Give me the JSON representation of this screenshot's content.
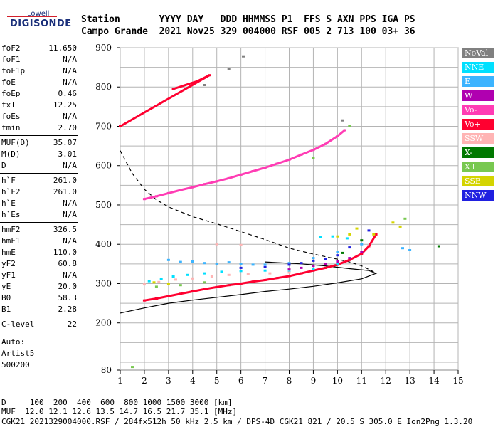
{
  "logo": {
    "line1": "Lowell",
    "line2": "DIGISONDE"
  },
  "header": {
    "line1": "Station       YYYY DAY   DDD HHMMSS P1  FFS S AXN PPS IGA PS",
    "line2": "Campo Grande  2021 Nov25 329 004000 RSF 005 2 713 100 03+ 36"
  },
  "params": {
    "group1": [
      {
        "label": "foF2",
        "value": "11.650"
      },
      {
        "label": "foF1",
        "value": "N/A"
      },
      {
        "label": "foF1p",
        "value": "N/A"
      },
      {
        "label": "foE",
        "value": "N/A"
      },
      {
        "label": "foEp",
        "value": "0.46"
      },
      {
        "label": "fxI",
        "value": "12.25"
      },
      {
        "label": "foEs",
        "value": "N/A"
      },
      {
        "label": "fmin",
        "value": "2.70"
      }
    ],
    "group2": [
      {
        "label": "MUF(D)",
        "value": "35.07"
      },
      {
        "label": "M(D)",
        "value": "3.01"
      },
      {
        "label": "D",
        "value": "N/A"
      }
    ],
    "group3": [
      {
        "label": "h`F",
        "value": "261.0"
      },
      {
        "label": "h`F2",
        "value": "261.0"
      },
      {
        "label": "h`E",
        "value": "N/A"
      },
      {
        "label": "h`Es",
        "value": "N/A"
      }
    ],
    "group4": [
      {
        "label": "hmF2",
        "value": "326.5"
      },
      {
        "label": "hmF1",
        "value": "N/A"
      },
      {
        "label": "hmE",
        "value": "110.0"
      },
      {
        "label": "yF2",
        "value": "60.8"
      },
      {
        "label": "yF1",
        "value": "N/A"
      },
      {
        "label": "yE",
        "value": "20.0"
      },
      {
        "label": "B0",
        "value": "58.3"
      },
      {
        "label": "B1",
        "value": "2.28"
      }
    ],
    "clevel": {
      "label": "C-level",
      "value": "22"
    },
    "auto": [
      "Auto:",
      "Artist5",
      "500200"
    ]
  },
  "legend": [
    {
      "label": "NoVal",
      "color": "#808080"
    },
    {
      "label": "NNE",
      "color": "#00e0ff"
    },
    {
      "label": "E",
      "color": "#3cb4ff"
    },
    {
      "label": "W",
      "color": "#b000b0"
    },
    {
      "label": "Vo-",
      "color": "#ff3cb4"
    },
    {
      "label": "Vo+",
      "color": "#ff0030"
    },
    {
      "label": "SSW",
      "color": "#ffb4b4"
    },
    {
      "label": "X-",
      "color": "#007800"
    },
    {
      "label": "X+",
      "color": "#78c850"
    },
    {
      "label": "SSE",
      "color": "#d4d400"
    },
    {
      "label": "NNW",
      "color": "#2020e0"
    }
  ],
  "footer": {
    "line1": "D     100  200  400  600  800 1000 1500 3000 [km]",
    "line2": "MUF  12.0 12.1 12.6 13.5 14.7 16.5 21.7 35.1 [MHz]",
    "line3": "CGK21_2021329004000.RSF / 284fx512h 50 kHz 2.5 km / DPS-4D CGK21 821 / 20.5 S 305.0 E Ion2Png 1.3.20"
  },
  "chart_data": {
    "type": "scatter",
    "title": "",
    "xlabel": "",
    "ylabel": "",
    "xlim": [
      1,
      15
    ],
    "ylim": [
      80,
      900
    ],
    "x_ticks": [
      1,
      2,
      3,
      4,
      5,
      6,
      7,
      8,
      9,
      10,
      11,
      12,
      13,
      14,
      15
    ],
    "y_ticks": [
      80,
      200,
      300,
      400,
      500,
      600,
      700,
      800,
      900
    ],
    "grid": true,
    "legend_position": "right",
    "series": [
      {
        "name": "Vo+",
        "color": "#ff0030",
        "points": [
          [
            2.0,
            257
          ],
          [
            2.5,
            262
          ],
          [
            3.0,
            268
          ],
          [
            3.5,
            274
          ],
          [
            4.0,
            280
          ],
          [
            4.5,
            286
          ],
          [
            5.0,
            291
          ],
          [
            5.5,
            296
          ],
          [
            6.0,
            300
          ],
          [
            6.5,
            305
          ],
          [
            7.0,
            309
          ],
          [
            7.5,
            314
          ],
          [
            8.0,
            319
          ],
          [
            8.5,
            326
          ],
          [
            9.0,
            333
          ],
          [
            9.5,
            340
          ],
          [
            10.0,
            348
          ],
          [
            10.5,
            360
          ],
          [
            11.0,
            376
          ],
          [
            11.3,
            395
          ],
          [
            11.6,
            425
          ]
        ]
      },
      {
        "name": "Vo-",
        "color": "#ff3cb4",
        "points": [
          [
            2.0,
            515
          ],
          [
            2.5,
            522
          ],
          [
            3.0,
            530
          ],
          [
            3.5,
            538
          ],
          [
            4.0,
            545
          ],
          [
            4.5,
            553
          ],
          [
            5.0,
            560
          ],
          [
            5.5,
            568
          ],
          [
            6.0,
            577
          ],
          [
            6.5,
            586
          ],
          [
            7.0,
            595
          ],
          [
            7.5,
            605
          ],
          [
            8.0,
            615
          ],
          [
            8.5,
            628
          ],
          [
            9.0,
            640
          ],
          [
            9.5,
            655
          ],
          [
            10.0,
            675
          ],
          [
            10.3,
            690
          ]
        ]
      },
      {
        "name": "E",
        "color": "#3cb4ff",
        "points": [
          [
            3.0,
            360
          ],
          [
            3.5,
            355
          ],
          [
            4.0,
            356
          ],
          [
            4.5,
            352
          ],
          [
            5.0,
            350
          ],
          [
            5.5,
            354
          ],
          [
            6.0,
            350
          ],
          [
            6.5,
            348
          ],
          [
            7.0,
            348
          ],
          [
            8.0,
            352
          ],
          [
            9.0,
            365
          ],
          [
            10.0,
            380
          ],
          [
            11.0,
            400
          ],
          [
            12.7,
            390
          ],
          [
            13.0,
            385
          ]
        ]
      },
      {
        "name": "NNE",
        "color": "#00e0ff",
        "points": [
          [
            2.2,
            306
          ],
          [
            2.7,
            312
          ],
          [
            3.2,
            318
          ],
          [
            3.8,
            322
          ],
          [
            4.5,
            326
          ],
          [
            5.2,
            330
          ],
          [
            6.0,
            332
          ],
          [
            7.0,
            333
          ],
          [
            8.0,
            330
          ],
          [
            9.0,
            338
          ],
          [
            10.0,
            350
          ],
          [
            9.3,
            418
          ],
          [
            9.8,
            420
          ],
          [
            10.4,
            415
          ]
        ]
      },
      {
        "name": "SSW",
        "color": "#ffb4b4",
        "points": [
          [
            2.0,
            298
          ],
          [
            2.6,
            304
          ],
          [
            3.3,
            310
          ],
          [
            4.0,
            313
          ],
          [
            4.8,
            318
          ],
          [
            5.5,
            322
          ],
          [
            6.3,
            324
          ],
          [
            7.2,
            326
          ],
          [
            8.0,
            328
          ],
          [
            5.0,
            400
          ],
          [
            6.0,
            398
          ]
        ]
      },
      {
        "name": "SSE",
        "color": "#d4d400",
        "points": [
          [
            2.4,
            303
          ],
          [
            3.0,
            300
          ],
          [
            10.0,
            420
          ],
          [
            10.5,
            425
          ],
          [
            11.5,
            425
          ],
          [
            12.3,
            455
          ],
          [
            12.6,
            445
          ],
          [
            10.8,
            440
          ]
        ]
      },
      {
        "name": "X+",
        "color": "#78c850",
        "points": [
          [
            2.5,
            292
          ],
          [
            3.5,
            296
          ],
          [
            4.5,
            303
          ],
          [
            9.0,
            620
          ],
          [
            10.5,
            700
          ],
          [
            12.8,
            465
          ],
          [
            1.5,
            88
          ]
        ]
      },
      {
        "name": "X-",
        "color": "#007800",
        "points": [
          [
            10.2,
            378
          ],
          [
            11.0,
            410
          ],
          [
            14.2,
            395
          ]
        ]
      },
      {
        "name": "W",
        "color": "#b000b0",
        "points": [
          [
            8.0,
            336
          ],
          [
            8.5,
            340
          ],
          [
            9.0,
            345
          ],
          [
            9.5,
            350
          ],
          [
            10.0,
            356
          ],
          [
            10.5,
            365
          ],
          [
            11.0,
            380
          ]
        ]
      },
      {
        "name": "NNW",
        "color": "#2020e0",
        "points": [
          [
            6.0,
            340
          ],
          [
            7.0,
            342
          ],
          [
            8.0,
            348
          ],
          [
            8.5,
            352
          ],
          [
            9.0,
            358
          ],
          [
            9.5,
            362
          ],
          [
            10.0,
            372
          ],
          [
            10.5,
            392
          ],
          [
            11.3,
            435
          ]
        ]
      },
      {
        "name": "NoVal",
        "color": "#808080",
        "points": [
          [
            4.5,
            805
          ],
          [
            5.5,
            845
          ],
          [
            6.1,
            878
          ],
          [
            10.2,
            715
          ]
        ]
      }
    ],
    "sparse_traces": [
      {
        "name": "Vo+",
        "color": "#ff0030",
        "points": [
          [
            3.2,
            795
          ],
          [
            4.2,
            815
          ],
          [
            4.7,
            830
          ],
          [
            1.0,
            700
          ]
        ]
      }
    ],
    "profile_curve": {
      "points": [
        [
          1.0,
          225
        ],
        [
          2.0,
          238
        ],
        [
          3.0,
          250
        ],
        [
          4.0,
          258
        ],
        [
          5.0,
          265
        ],
        [
          6.0,
          272
        ],
        [
          7.0,
          280
        ],
        [
          8.0,
          286
        ],
        [
          9.0,
          293
        ],
        [
          10.0,
          302
        ],
        [
          11.0,
          312
        ],
        [
          11.6,
          326
        ],
        [
          11.3,
          333
        ],
        [
          10.5,
          338
        ],
        [
          9.5,
          345
        ],
        [
          8.5,
          350
        ],
        [
          7.0,
          355
        ]
      ]
    },
    "dashed_curve": {
      "points": [
        [
          1.0,
          638
        ],
        [
          1.5,
          580
        ],
        [
          2.0,
          540
        ],
        [
          2.5,
          513
        ],
        [
          3.0,
          495
        ],
        [
          4.0,
          470
        ],
        [
          5.0,
          452
        ],
        [
          6.0,
          432
        ],
        [
          7.0,
          412
        ],
        [
          8.0,
          390
        ],
        [
          9.0,
          375
        ],
        [
          10.0,
          362
        ],
        [
          10.5,
          355
        ],
        [
          11.0,
          345
        ],
        [
          11.5,
          330
        ]
      ]
    }
  }
}
